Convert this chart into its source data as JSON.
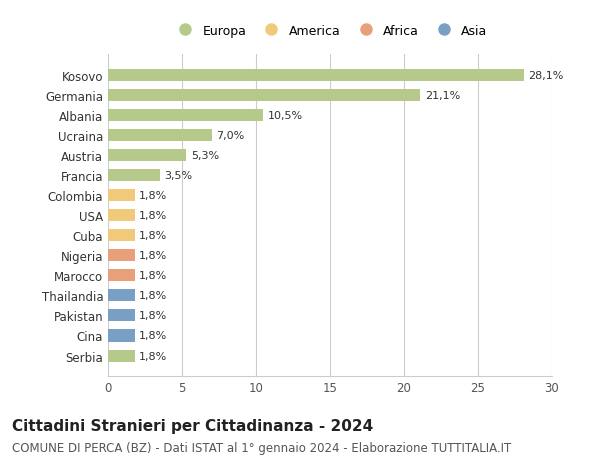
{
  "categories": [
    "Kosovo",
    "Germania",
    "Albania",
    "Ucraina",
    "Austria",
    "Francia",
    "Colombia",
    "USA",
    "Cuba",
    "Nigeria",
    "Marocco",
    "Thailandia",
    "Pakistan",
    "Cina",
    "Serbia"
  ],
  "values": [
    28.1,
    21.1,
    10.5,
    7.0,
    5.3,
    3.5,
    1.8,
    1.8,
    1.8,
    1.8,
    1.8,
    1.8,
    1.8,
    1.8,
    1.8
  ],
  "labels": [
    "28,1%",
    "21,1%",
    "10,5%",
    "7,0%",
    "5,3%",
    "3,5%",
    "1,8%",
    "1,8%",
    "1,8%",
    "1,8%",
    "1,8%",
    "1,8%",
    "1,8%",
    "1,8%",
    "1,8%"
  ],
  "colors": [
    "#b5c98a",
    "#b5c98a",
    "#b5c98a",
    "#b5c98a",
    "#b5c98a",
    "#b5c98a",
    "#f0c97a",
    "#f0c97a",
    "#f0c97a",
    "#e8a07a",
    "#e8a07a",
    "#7a9fc4",
    "#7a9fc4",
    "#7a9fc4",
    "#b5c98a"
  ],
  "legend_labels": [
    "Europa",
    "America",
    "Africa",
    "Asia"
  ],
  "legend_colors": [
    "#b5c98a",
    "#f0c97a",
    "#e8a07a",
    "#7a9fc4"
  ],
  "title": "Cittadini Stranieri per Cittadinanza - 2024",
  "subtitle": "COMUNE DI PERCA (BZ) - Dati ISTAT al 1° gennaio 2024 - Elaborazione TUTTITALIA.IT",
  "xlim": [
    0,
    30
  ],
  "xticks": [
    0,
    5,
    10,
    15,
    20,
    25,
    30
  ],
  "background_color": "#ffffff",
  "grid_color": "#cccccc",
  "bar_height": 0.6,
  "title_fontsize": 11,
  "subtitle_fontsize": 8.5,
  "label_fontsize": 8,
  "tick_fontsize": 8.5
}
